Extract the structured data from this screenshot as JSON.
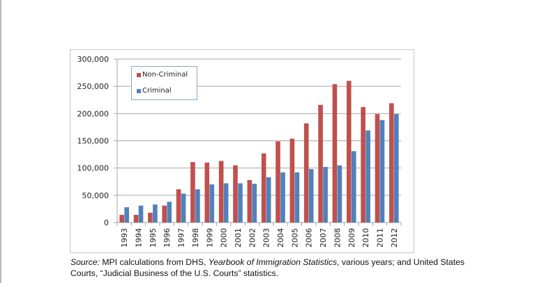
{
  "chart_data": {
    "type": "bar",
    "title": "",
    "xlabel": "",
    "ylabel": "",
    "ylim": [
      0,
      300000
    ],
    "yticks": [
      0,
      50000,
      100000,
      150000,
      200000,
      250000,
      300000
    ],
    "ytick_labels": [
      "0",
      "50,000",
      "100,000",
      "150,000",
      "200,000",
      "250,000",
      "300,000"
    ],
    "grid": true,
    "legend_position": "top-left",
    "categories": [
      "1993",
      "1994",
      "1995",
      "1996",
      "1997",
      "1998",
      "1999",
      "2000",
      "2001",
      "2002",
      "2003",
      "2004",
      "2005",
      "2006",
      "2007",
      "2008",
      "2009",
      "2010",
      "2011",
      "2012"
    ],
    "series": [
      {
        "name": "Non-Criminal",
        "color": "#C0504D",
        "values": [
          14000,
          14000,
          18000,
          31000,
          61000,
          111000,
          110000,
          113000,
          105000,
          78000,
          127000,
          149000,
          154000,
          182000,
          216000,
          254000,
          260000,
          212000,
          199000,
          219000
        ]
      },
      {
        "name": "Criminal",
        "color": "#4F81BD",
        "values": [
          28000,
          31000,
          33000,
          38000,
          53000,
          61000,
          70000,
          72000,
          72000,
          71000,
          83000,
          92000,
          92000,
          98000,
          102000,
          105000,
          131000,
          169000,
          188000,
          199000
        ]
      }
    ]
  },
  "caption": {
    "source_label": "Source:",
    "part1": " MPI calculations from DHS, ",
    "publication": "Yearbook of Immigration Statistics",
    "part2": ", various years; and United States",
    "line2": "Courts, “Judicial Business of the U.S. Courts” statistics."
  }
}
